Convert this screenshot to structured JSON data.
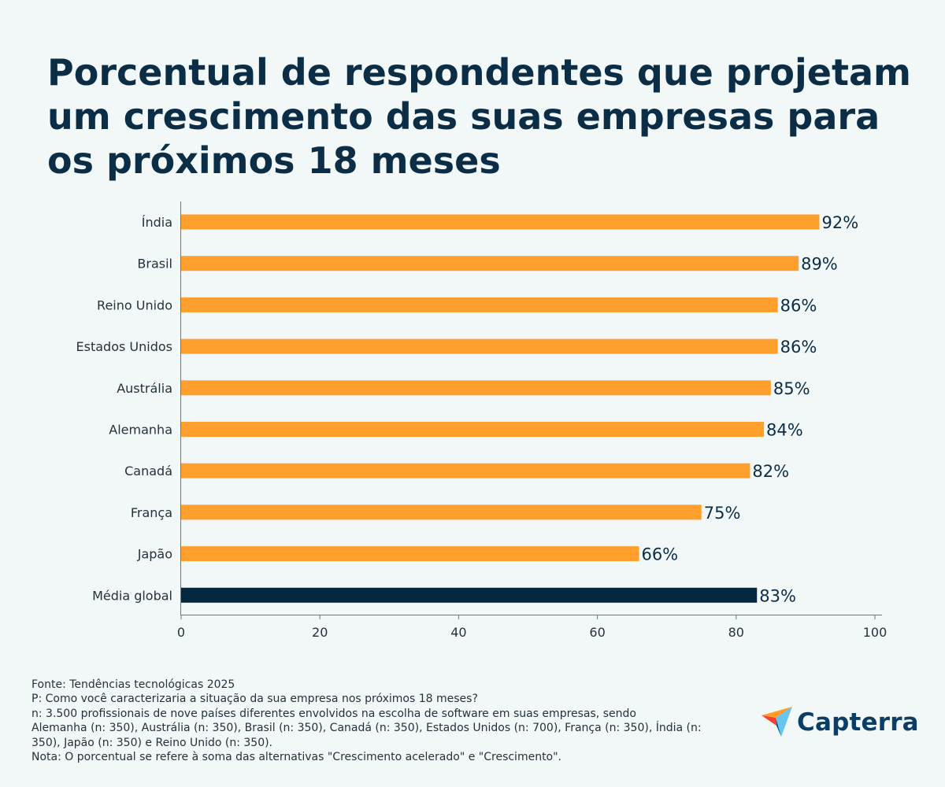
{
  "title": "Porcentual de respondentes que projetam um crescimento das suas empresas para os próximos 18 meses",
  "chart_data": {
    "type": "bar",
    "orientation": "horizontal",
    "categories": [
      "Índia",
      "Brasil",
      "Reino Unido",
      "Estados Unidos",
      "Austrália",
      "Alemanha",
      "Canadá",
      "França",
      "Japão",
      "Média global"
    ],
    "values": [
      92,
      89,
      86,
      86,
      85,
      84,
      82,
      75,
      66,
      83
    ],
    "value_labels": [
      "92%",
      "89%",
      "86%",
      "86%",
      "85%",
      "84%",
      "82%",
      "75%",
      "66%",
      "83%"
    ],
    "highlight_category": "Média global",
    "xlim": [
      0,
      100
    ],
    "x_ticks": [
      0,
      20,
      40,
      60,
      80,
      100
    ],
    "grid": false,
    "bar_color": "#ffa02e",
    "highlight_color": "#03283f"
  },
  "footer": {
    "source": "Fonte: Tendências tecnológicas 2025",
    "question": "P: Como você caracterizaria a situação da sua empresa nos próximos 18 meses?",
    "sample_1": "n: 3.500 profissionais de nove países diferentes envolvidos na escolha de software em suas empresas, sendo",
    "sample_2": "Alemanha (n: 350), Austrália (n: 350), Brasil (n: 350), Canadá (n: 350), Estados Unidos (n: 700), França (n: 350), Índia (n:",
    "sample_3": "350), Japão (n: 350) e Reino Unido (n: 350).",
    "note": "Nota: O porcentual se refere à soma das alternativas \"Crescimento acelerado\" e \"Crescimento\"."
  },
  "logo": {
    "text": "Capterra",
    "icon": "capterra-arrow-icon"
  }
}
